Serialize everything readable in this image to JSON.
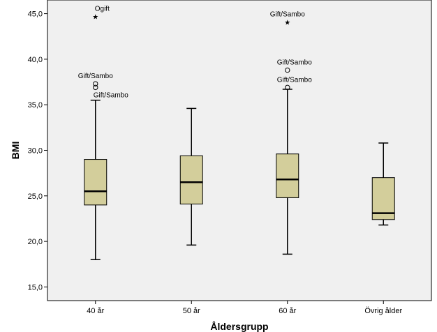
{
  "chart_data": {
    "type": "boxplot",
    "xlabel": "Åldersgrupp",
    "ylabel": "BMI",
    "ylim": [
      13.5,
      46.5
    ],
    "yticks": [
      "15,0",
      "20,0",
      "25,0",
      "30,0",
      "35,0",
      "40,0",
      "45,0"
    ],
    "ytick_values": [
      15,
      20,
      25,
      30,
      35,
      40,
      45
    ],
    "grid": false,
    "colors": {
      "box": "#d3ce9b",
      "plot_bg": "#f0f0f0",
      "line": "#000000"
    },
    "categories": [
      "40 år",
      "50 år",
      "60 år",
      "Övrig ålder"
    ],
    "boxes": [
      {
        "category": "40 år",
        "whisker_low": 18.0,
        "q1": 24.0,
        "median": 25.5,
        "q3": 29.0,
        "whisker_high": 35.5,
        "outliers": [
          {
            "value": 37.3,
            "marker": "circle",
            "label": "Gift/Sambo"
          },
          {
            "value": 36.9,
            "marker": "circle",
            "label": "Gift/Sambo"
          },
          {
            "value": 44.7,
            "marker": "star",
            "label": "Ogift"
          }
        ]
      },
      {
        "category": "50 år",
        "whisker_low": 19.6,
        "q1": 24.1,
        "median": 26.5,
        "q3": 29.4,
        "whisker_high": 34.6,
        "outliers": []
      },
      {
        "category": "60 år",
        "whisker_low": 18.6,
        "q1": 24.8,
        "median": 26.8,
        "q3": 29.6,
        "whisker_high": 36.7,
        "outliers": [
          {
            "value": 36.9,
            "marker": "circle",
            "label": "Gift/Sambo"
          },
          {
            "value": 38.8,
            "marker": "circle",
            "label": "Gift/Sambo"
          },
          {
            "value": 44.1,
            "marker": "star",
            "label": "Gift/Sambo"
          }
        ]
      },
      {
        "category": "Övrig ålder",
        "whisker_low": 21.8,
        "q1": 22.4,
        "median": 23.1,
        "q3": 27.0,
        "whisker_high": 30.8,
        "outliers": []
      }
    ]
  }
}
